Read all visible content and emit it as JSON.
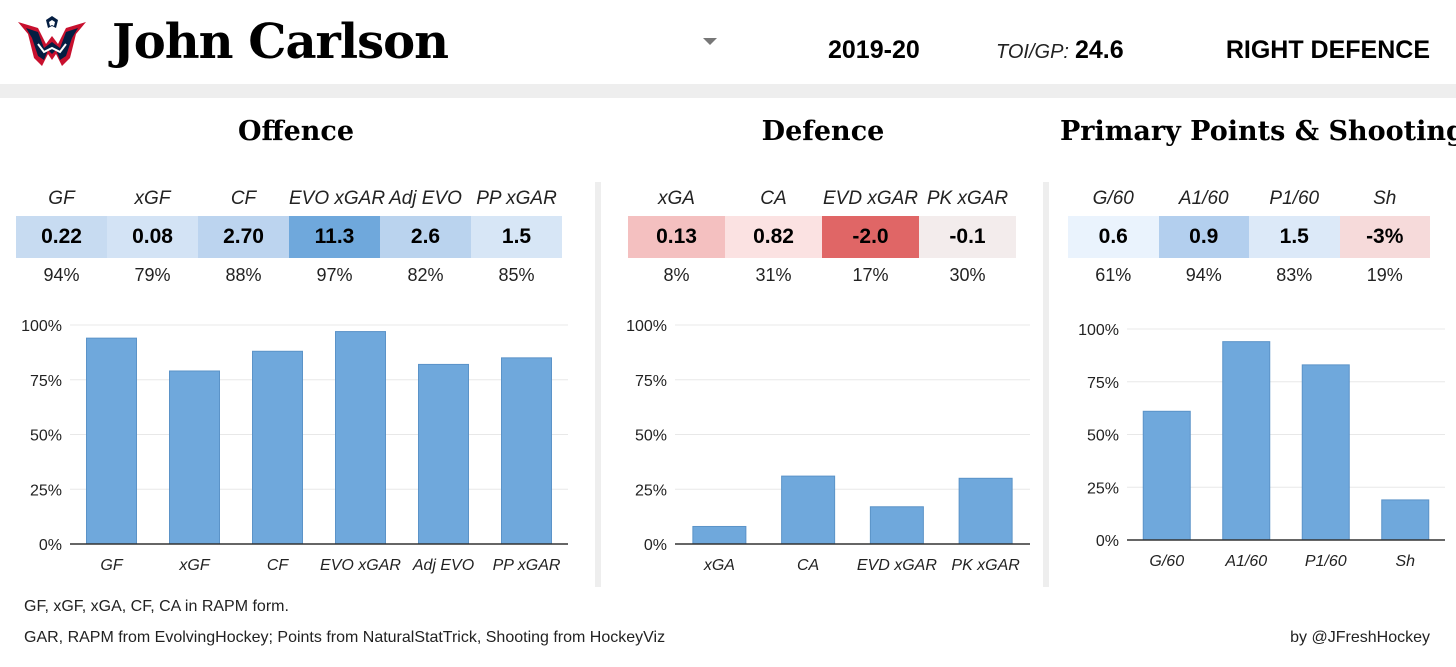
{
  "header": {
    "player_name": "John Carlson",
    "season": "2019-20",
    "toi_label": "TOI/GP:",
    "toi_value": "24.6",
    "position": "RIGHT DEFENCE",
    "logo_icon": "washington-capitals-eagle-logo",
    "dropdown_icon": "caret-down-icon"
  },
  "sections": [
    {
      "title": "Offence",
      "stats": [
        {
          "label": "GF",
          "value": "0.22",
          "percentile": "94%",
          "color": "#c7dbf1"
        },
        {
          "label": "xGF",
          "value": "0.08",
          "percentile": "79%",
          "color": "#d3e3f5"
        },
        {
          "label": "CF",
          "value": "2.70",
          "percentile": "88%",
          "color": "#bcd4ef"
        },
        {
          "label": "EVO xGAR",
          "value": "11.3",
          "percentile": "97%",
          "color": "#6fa8dc"
        },
        {
          "label": "Adj EVO",
          "value": "2.6",
          "percentile": "82%",
          "color": "#bad3ee"
        },
        {
          "label": "PP xGAR",
          "value": "1.5",
          "percentile": "85%",
          "color": "#d7e6f6"
        }
      ]
    },
    {
      "title": "Defence",
      "stats": [
        {
          "label": "xGA",
          "value": "0.13",
          "percentile": "8%",
          "color": "#f4c0c0"
        },
        {
          "label": "CA",
          "value": "0.82",
          "percentile": "31%",
          "color": "#fbe2e2"
        },
        {
          "label": "EVD xGAR",
          "value": "-2.0",
          "percentile": "17%",
          "color": "#e06666"
        },
        {
          "label": "PK xGAR",
          "value": "-0.1",
          "percentile": "30%",
          "color": "#f3ecec"
        }
      ]
    },
    {
      "title": "Primary Points & Shooting",
      "stats": [
        {
          "label": "G/60",
          "value": "0.6",
          "percentile": "61%",
          "color": "#eaf3fd"
        },
        {
          "label": "A1/60",
          "value": "0.9",
          "percentile": "94%",
          "color": "#b3cfee"
        },
        {
          "label": "P1/60",
          "value": "1.5",
          "percentile": "83%",
          "color": "#dce9f8"
        },
        {
          "label": "Sh",
          "value": "-3%",
          "percentile": "19%",
          "color": "#f6dada"
        }
      ]
    }
  ],
  "chart_data": [
    {
      "type": "bar",
      "categories": [
        "GF",
        "xGF",
        "CF",
        "EVO xGAR",
        "Adj EVO",
        "PP xGAR"
      ],
      "values": [
        94,
        79,
        88,
        97,
        82,
        85
      ],
      "ylim": [
        0,
        100
      ],
      "yticks": [
        "0%",
        "25%",
        "50%",
        "75%",
        "100%"
      ],
      "bar_color": "#6fa8dc",
      "grid": true
    },
    {
      "type": "bar",
      "categories": [
        "xGA",
        "CA",
        "EVD xGAR",
        "PK xGAR"
      ],
      "values": [
        8,
        31,
        17,
        30
      ],
      "ylim": [
        0,
        100
      ],
      "yticks": [
        "0%",
        "25%",
        "50%",
        "75%",
        "100%"
      ],
      "bar_color": "#6fa8dc",
      "grid": true
    },
    {
      "type": "bar",
      "categories": [
        "G/60",
        "A1/60",
        "P1/60",
        "Sh"
      ],
      "values": [
        61,
        94,
        83,
        19
      ],
      "ylim": [
        0,
        100
      ],
      "yticks": [
        "0%",
        "25%",
        "50%",
        "75%",
        "100%"
      ],
      "bar_color": "#6fa8dc",
      "grid": true
    }
  ],
  "footer": {
    "note1": "GF, xGF, xGA, CF, CA in RAPM form.",
    "note2": "GAR, RAPM from EvolvingHockey; Points from NaturalStatTrick, Shooting from HockeyViz",
    "credit": "by @JFreshHockey"
  }
}
